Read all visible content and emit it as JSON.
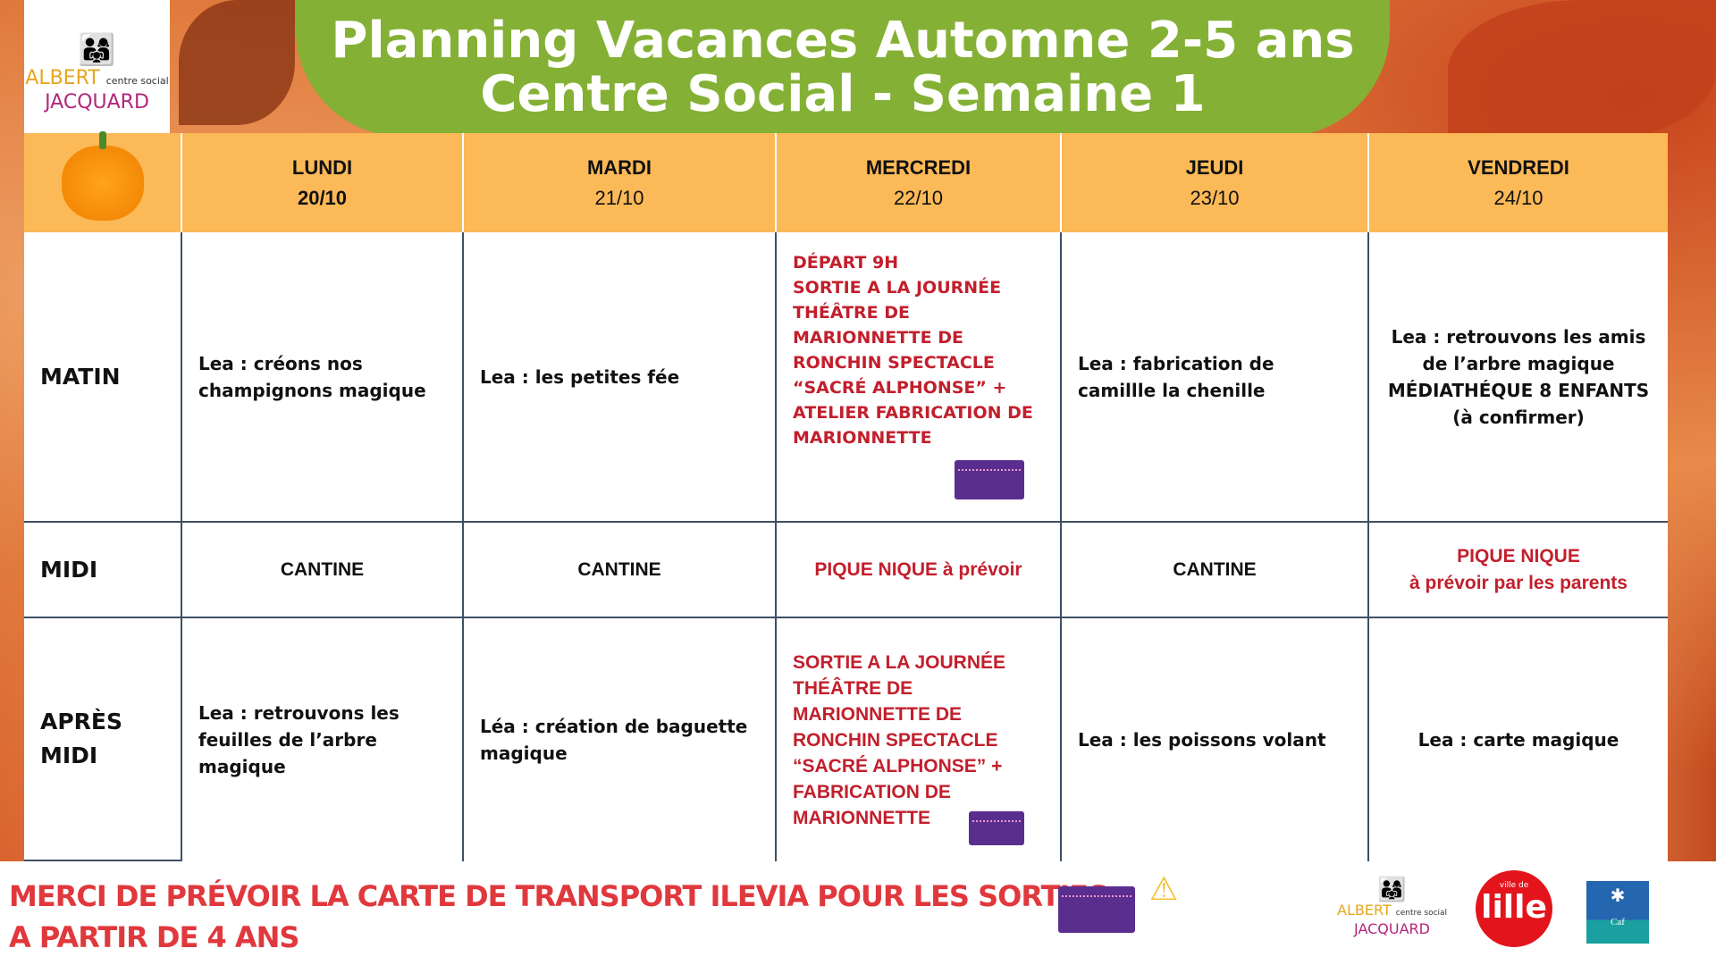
{
  "title": {
    "line1": "Planning Vacances Automne 2-5 ans",
    "line2": "Centre Social - Semaine 1"
  },
  "logo": {
    "name1": "ALBERT",
    "name2": "JACQUARD",
    "sub": "centre social"
  },
  "days": [
    {
      "name": "LUNDI",
      "date": "20/10"
    },
    {
      "name": "MARDI",
      "date": "21/10"
    },
    {
      "name": "MERCREDI",
      "date": "22/10"
    },
    {
      "name": "JEUDI",
      "date": "23/10"
    },
    {
      "name": "VENDREDI",
      "date": "24/10"
    }
  ],
  "rows": {
    "matin": "MATIN",
    "midi": "MIDI",
    "apres": "APRÈS MIDI"
  },
  "matin": [
    "Lea : créons nos champignons magique",
    "Lea : les petites fée",
    "DÉPART 9H\nSORTIE A LA JOURNÉE THÉÂTRE DE MARIONNETTE DE RONCHIN SPECTACLE “SACRÉ ALPHONSE” + ATELIER FABRICATION DE MARIONNETTE",
    "Lea : fabrication  de camillle la chenille",
    "Lea : retrouvons les amis de l’arbre magique MÉDIATHÉQUE 8 ENFANTS (à confirmer)"
  ],
  "midi": [
    "CANTINE",
    "CANTINE",
    "PIQUE NIQUE à prévoir",
    "CANTINE",
    "PIQUE NIQUE\nà prévoir par les parents"
  ],
  "apres": [
    "Lea : retrouvons les feuilles de l’arbre magique",
    "Léa : création de baguette magique",
    "SORTIE A LA JOURNÉE THÉÂTRE DE MARIONNETTE DE RONCHIN SPECTACLE “SACRÉ ALPHONSE” + FABRICATION DE MARIONNETTE",
    "Lea : les poissons volant",
    "Lea : carte magique"
  ],
  "footer": {
    "line1": "MERCI DE PRÉVOIR LA CARTE DE TRANSPORT ILEVIA POUR LES SORTIES",
    "line2": "A PARTIR DE 4 ANS",
    "lille": "ville de",
    "caf": "Caf"
  },
  "colors": {
    "banner": "#84b135",
    "header": "#fbb957",
    "red": "#c21f2c",
    "footer_red": "#e0383c"
  }
}
